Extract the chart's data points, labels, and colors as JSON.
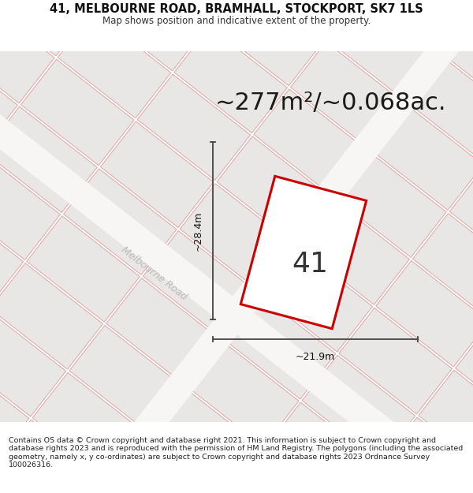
{
  "title_line1": "41, MELBOURNE ROAD, BRAMHALL, STOCKPORT, SK7 1LS",
  "title_line2": "Map shows position and indicative extent of the property.",
  "area_text": "~277m²/~0.068ac.",
  "number_label": "41",
  "width_label": "~21.9m",
  "height_label": "~28.4m",
  "road_label": "Melbourne Road",
  "footer_text": "Contains OS data © Crown copyright and database right 2021. This information is subject to Crown copyright and database rights 2023 and is reproduced with the permission of HM Land Registry. The polygons (including the associated geometry, namely x, y co-ordinates) are subject to Crown copyright and database rights 2023 Ordnance Survey 100026316.",
  "map_bg": "#f7f6f4",
  "parcel_fill": "#e8e7e5",
  "parcel_edge_gray": "#c8c7c5",
  "parcel_edge_red": "#f0a0a0",
  "road_fill": "#f7f6f4",
  "property_fill": "#ffffff",
  "property_edge": "#cc0000",
  "dim_line_color": "#444444",
  "road_label_color": "#bbbbbb",
  "title_fontsize": 10.5,
  "subtitle_fontsize": 8.5,
  "area_fontsize": 22,
  "number_fontsize": 26,
  "dim_fontsize": 9,
  "road_fontsize": 9,
  "footer_fontsize": 6.8
}
